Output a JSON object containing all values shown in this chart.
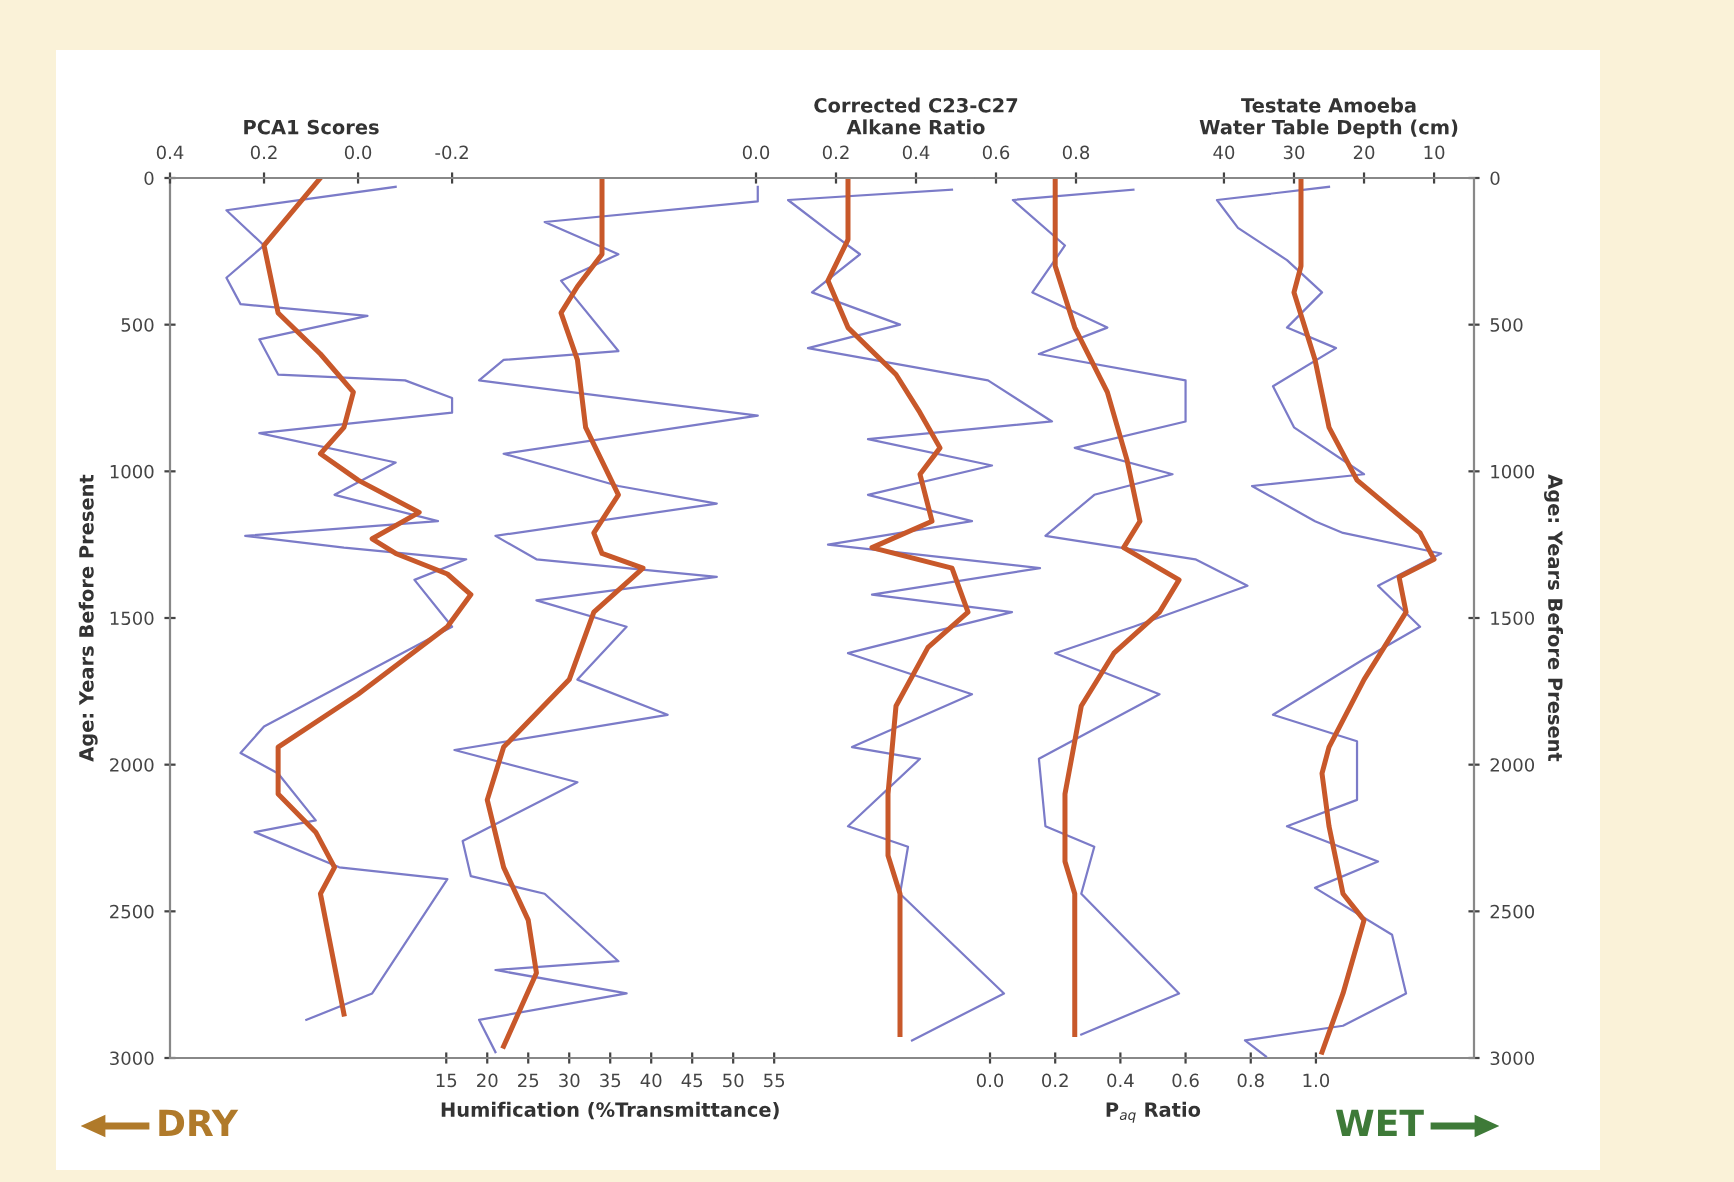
{
  "chart_data": [
    {
      "type": "line",
      "orientation": "horizontal",
      "x2label": "PCA1 Scores",
      "xlabel": "Humification (%Transmittance)",
      "ylabel": "Age: Years Before Present",
      "x2lim": [
        0.4,
        -0.906
      ],
      "x2ticks": [
        {
          "value": 0.4,
          "label": "0.4"
        },
        {
          "value": 0.2,
          "label": "0.2"
        },
        {
          "value": 0.0,
          "label": "0.0"
        },
        {
          "value": -0.2,
          "label": "-0.2"
        }
      ],
      "xlim": [
        -18.7,
        56.2
      ],
      "xticks": [
        15,
        20,
        25,
        30,
        35,
        40,
        45,
        50,
        55
      ],
      "ylim": [
        3000,
        0
      ],
      "yticks": [
        0,
        500,
        1000,
        1500,
        2000,
        2500,
        3000
      ],
      "annotations": [
        "DRY"
      ],
      "series": [
        {
          "color": "#7b7bc8",
          "axis": "x2",
          "x": [
            30,
            110,
            230,
            340,
            430,
            470,
            550,
            670,
            690,
            750,
            800,
            870,
            970,
            1080,
            1170,
            1220,
            1260,
            1300,
            1370,
            1530,
            1870,
            1960,
            2030,
            2190,
            2230,
            2350,
            2390,
            2780,
            2870
          ],
          "values": [
            -0.08,
            0.28,
            0.2,
            0.28,
            0.25,
            -0.02,
            0.21,
            0.17,
            -0.1,
            -0.2,
            -0.2,
            0.21,
            -0.08,
            0.05,
            -0.17,
            0.24,
            0.03,
            -0.23,
            -0.12,
            -0.2,
            0.2,
            0.25,
            0.17,
            0.09,
            0.22,
            0.04,
            -0.19,
            -0.03,
            0.11
          ]
        },
        {
          "color": "#c8582a",
          "axis": "x2",
          "x": [
            0,
            230,
            460,
            600,
            730,
            850,
            940,
            1030,
            1140,
            1230,
            1280,
            1350,
            1420,
            1530,
            1760,
            1940,
            2100,
            2230,
            2350,
            2440,
            2850
          ],
          "values": [
            0.08,
            0.2,
            0.17,
            0.08,
            0.01,
            0.03,
            0.08,
            0.0,
            -0.13,
            -0.03,
            -0.08,
            -0.19,
            -0.24,
            -0.19,
            0.0,
            0.17,
            0.17,
            0.09,
            0.05,
            0.08,
            0.03
          ]
        },
        {
          "color": "#7b7bc8",
          "x": [
            30,
            80,
            150,
            260,
            350,
            590,
            620,
            690,
            810,
            940,
            1050,
            1110,
            1220,
            1300,
            1360,
            1440,
            1530,
            1710,
            1830,
            1950,
            2060,
            2260,
            2380,
            2440,
            2670,
            2700,
            2780,
            2870,
            2980
          ],
          "values": [
            53,
            53,
            27,
            36,
            29,
            36,
            22,
            19,
            53,
            22,
            36,
            48,
            21,
            26,
            48,
            26,
            37,
            31,
            42,
            16,
            31,
            17,
            18,
            27,
            36,
            21,
            37,
            19,
            21
          ]
        },
        {
          "color": "#c8582a",
          "x": [
            0,
            260,
            370,
            460,
            620,
            850,
            1080,
            1210,
            1280,
            1330,
            1480,
            1710,
            1940,
            2120,
            2350,
            2530,
            2710,
            2960
          ],
          "values": [
            34,
            34,
            31,
            29,
            31,
            32,
            36,
            33,
            34,
            39,
            33,
            30,
            22,
            20,
            22,
            25,
            26,
            22
          ]
        }
      ]
    },
    {
      "type": "line",
      "orientation": "horizontal",
      "x2label": "Corrected C23-C27\nAlkane Ratio",
      "tick_labels": "x",
      "x2lim": [
        -0.03,
        0.835
      ],
      "x2ticks": [
        {
          "value": 0.0,
          "label": "0.0"
        },
        {
          "value": 0.2,
          "label": "0.2"
        },
        {
          "value": 0.4,
          "label": "0.4"
        },
        {
          "value": 0.6,
          "label": "0.6"
        },
        {
          "value": 0.8,
          "label": "0.8"
        }
      ],
      "ylim": [
        3000,
        0
      ],
      "series": [
        {
          "color": "#7b7bc8",
          "axis": "x2",
          "x": [
            40,
            75,
            190,
            260,
            390,
            500,
            580,
            690,
            830,
            890,
            980,
            1080,
            1170,
            1250,
            1330,
            1420,
            1480,
            1620,
            1760,
            1940,
            1980,
            2210,
            2280,
            2440,
            2780,
            2940
          ],
          "values": [
            0.49,
            0.08,
            0.19,
            0.26,
            0.14,
            0.36,
            0.13,
            0.58,
            0.74,
            0.28,
            0.59,
            0.28,
            0.54,
            0.18,
            0.71,
            0.29,
            0.64,
            0.23,
            0.54,
            0.24,
            0.41,
            0.23,
            0.38,
            0.36,
            0.62,
            0.39
          ]
        },
        {
          "color": "#c8582a",
          "axis": "x2",
          "x": [
            0,
            210,
            350,
            510,
            670,
            800,
            920,
            1010,
            1170,
            1260,
            1330,
            1480,
            1600,
            1800,
            2100,
            2310,
            2440,
            2920
          ],
          "values": [
            0.23,
            0.23,
            0.18,
            0.23,
            0.35,
            0.41,
            0.46,
            0.41,
            0.44,
            0.29,
            0.49,
            0.53,
            0.43,
            0.35,
            0.33,
            0.33,
            0.36,
            0.36
          ]
        }
      ]
    },
    {
      "type": "line",
      "orientation": "horizontal",
      "xlabel": "P$_{aq}$ Ratio",
      "x2label": "Testate Amoeba\nWater Table Depth (cm)",
      "ylabel": "Age: Years Before Present",
      "xlim": [
        -0.043,
        1.485
      ],
      "xticks": [
        {
          "value": 0.0,
          "label": "0.0"
        },
        {
          "value": 0.2,
          "label": "0.2"
        },
        {
          "value": 0.4,
          "label": "0.4"
        },
        {
          "value": 0.6,
          "label": "0.6"
        },
        {
          "value": 0.8,
          "label": "0.8"
        },
        {
          "value": 1.0,
          "label": "1.0"
        }
      ],
      "x2lim": [
        75.4,
        4.3
      ],
      "x2ticks": [
        40,
        30,
        20,
        10
      ],
      "ylim": [
        3000,
        0
      ],
      "yticks": [
        0,
        500,
        1000,
        1500,
        2000,
        2500,
        3000
      ],
      "annotations": [
        "WET"
      ],
      "series": [
        {
          "color": "#7b7bc8",
          "x": [
            40,
            75,
            230,
            390,
            510,
            600,
            690,
            830,
            920,
            1010,
            1080,
            1220,
            1300,
            1390,
            1530,
            1620,
            1760,
            1980,
            2210,
            2280,
            2440,
            2780,
            2920
          ],
          "values": [
            0.44,
            0.07,
            0.23,
            0.13,
            0.36,
            0.15,
            0.6,
            0.6,
            0.26,
            0.56,
            0.32,
            0.17,
            0.63,
            0.79,
            0.44,
            0.2,
            0.52,
            0.15,
            0.17,
            0.32,
            0.28,
            0.58,
            0.28
          ]
        },
        {
          "color": "#c8582a",
          "x": [
            0,
            300,
            510,
            730,
            960,
            1170,
            1260,
            1370,
            1480,
            1620,
            1800,
            2100,
            2330,
            2440,
            2920
          ],
          "values": [
            0.2,
            0.2,
            0.26,
            0.36,
            0.42,
            0.46,
            0.41,
            0.58,
            0.52,
            0.38,
            0.28,
            0.23,
            0.23,
            0.26,
            0.26
          ]
        },
        {
          "color": "#7b7bc8",
          "axis": "x2",
          "x": [
            30,
            75,
            170,
            280,
            390,
            510,
            580,
            710,
            850,
            1010,
            1050,
            1170,
            1210,
            1280,
            1390,
            1530,
            1640,
            1830,
            1920,
            2120,
            2210,
            2330,
            2420,
            2580,
            2780,
            2890,
            2940,
            2995
          ],
          "values": [
            25,
            41,
            38,
            31,
            26,
            31,
            24,
            33,
            30,
            20,
            36,
            27,
            23,
            9,
            18,
            12,
            20,
            33,
            21,
            21,
            31,
            18,
            27,
            16,
            14,
            23,
            37,
            34
          ]
        },
        {
          "color": "#c8582a",
          "axis": "x2",
          "x": [
            0,
            300,
            390,
            620,
            850,
            1030,
            1210,
            1300,
            1360,
            1480,
            1710,
            1940,
            2030,
            2210,
            2440,
            2530,
            2780,
            2980
          ],
          "values": [
            29,
            29,
            30,
            27,
            25,
            21,
            12,
            10,
            15,
            14,
            20,
            25,
            26,
            25,
            23,
            20,
            23,
            26
          ]
        }
      ]
    }
  ]
}
